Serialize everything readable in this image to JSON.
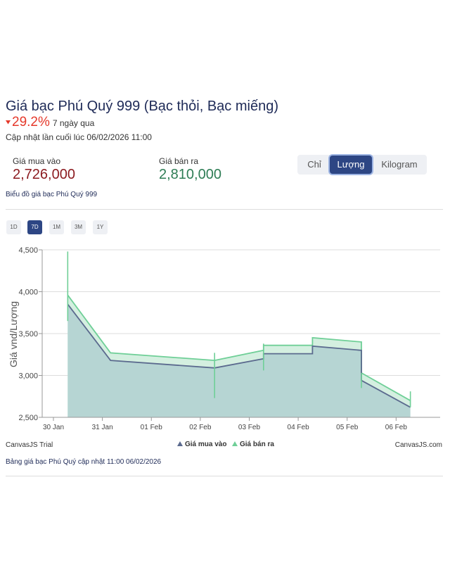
{
  "header": {
    "title": "Giá bạc Phú Quý 999 (Bạc thỏi, Bạc miếng)",
    "change_value": "29.2%",
    "change_period": "7 ngày qua",
    "updated": "Cập nhật lần cuối lúc 06/02/2026 11:00"
  },
  "prices": {
    "buy_label": "Giá mua vào",
    "buy_value": "2,726,000",
    "sell_label": "Giá bán ra",
    "sell_value": "2,810,000"
  },
  "units": {
    "options": [
      "Chỉ",
      "Lượng",
      "Kilogram"
    ],
    "selected": "Lượng"
  },
  "chart_caption": "Biểu đồ giá bạc Phú Quý 999",
  "ranges": {
    "options": [
      "1D",
      "7D",
      "1M",
      "3M",
      "1Y"
    ],
    "selected": "7D"
  },
  "footer": {
    "trial_label": "CanvasJS Trial",
    "credit": "CanvasJS.com",
    "table_caption": "Bảng giá bạc Phú Quý cập nhật 11:00 06/02/2026"
  },
  "colors": {
    "buy_line": "#5b6a8e",
    "buy_fill": "#b6d5d3",
    "sell_line": "#6fcf97",
    "sell_fill": "#d4efe0",
    "change_down": "#e5392b",
    "active_button": "#2d4684"
  },
  "chart_data": {
    "type": "area",
    "ylabel": "Giá vnd/Lượng",
    "xlabel": "",
    "ylim": [
      2500,
      4500
    ],
    "yticks": [
      "2,500",
      "3,000",
      "3,500",
      "4,000",
      "4,500"
    ],
    "xticks": [
      "30 Jan",
      "31 Jan",
      "01 Feb",
      "02 Feb",
      "03 Feb",
      "04 Feb",
      "05 Feb",
      "06 Feb"
    ],
    "grid": true,
    "legend_position": "bottom",
    "series": [
      {
        "name": "Giá mua vào",
        "points": [
          {
            "t": "30 Jan 07:00",
            "v": 3850
          },
          {
            "t": "31 Jan 04:00",
            "v": 3180
          },
          {
            "t": "02 Feb 07:00",
            "v": 3090
          },
          {
            "t": "03 Feb 07:00",
            "v": 3200
          },
          {
            "t": "03 Feb 07:00",
            "v": 3260
          },
          {
            "t": "04 Feb 07:00",
            "v": 3260
          },
          {
            "t": "04 Feb 07:00",
            "v": 3350
          },
          {
            "t": "05 Feb 07:00",
            "v": 3300
          },
          {
            "t": "05 Feb 07:00",
            "v": 2940
          },
          {
            "t": "06 Feb 07:00",
            "v": 2620
          }
        ]
      },
      {
        "name": "Giá bán ra",
        "points": [
          {
            "t": "30 Jan 07:00",
            "v": 3960
          },
          {
            "t": "31 Jan 04:00",
            "v": 3270
          },
          {
            "t": "02 Feb 07:00",
            "v": 3180
          },
          {
            "t": "03 Feb 07:00",
            "v": 3300
          },
          {
            "t": "03 Feb 07:00",
            "v": 3360
          },
          {
            "t": "04 Feb 07:00",
            "v": 3360
          },
          {
            "t": "04 Feb 07:00",
            "v": 3450
          },
          {
            "t": "05 Feb 07:00",
            "v": 3400
          },
          {
            "t": "05 Feb 07:00",
            "v": 3030
          },
          {
            "t": "06 Feb 07:00",
            "v": 2700
          }
        ]
      }
    ],
    "ranges": [
      {
        "t": "30 Jan 07:00",
        "low": 3650,
        "high": 4480
      },
      {
        "t": "02 Feb 07:00",
        "low": 2730,
        "high": 3270
      },
      {
        "t": "03 Feb 07:00",
        "low": 3060,
        "high": 3380
      },
      {
        "t": "05 Feb 07:00",
        "low": 2850,
        "high": 3030
      },
      {
        "t": "06 Feb 07:00",
        "low": 2620,
        "high": 2810
      }
    ]
  }
}
